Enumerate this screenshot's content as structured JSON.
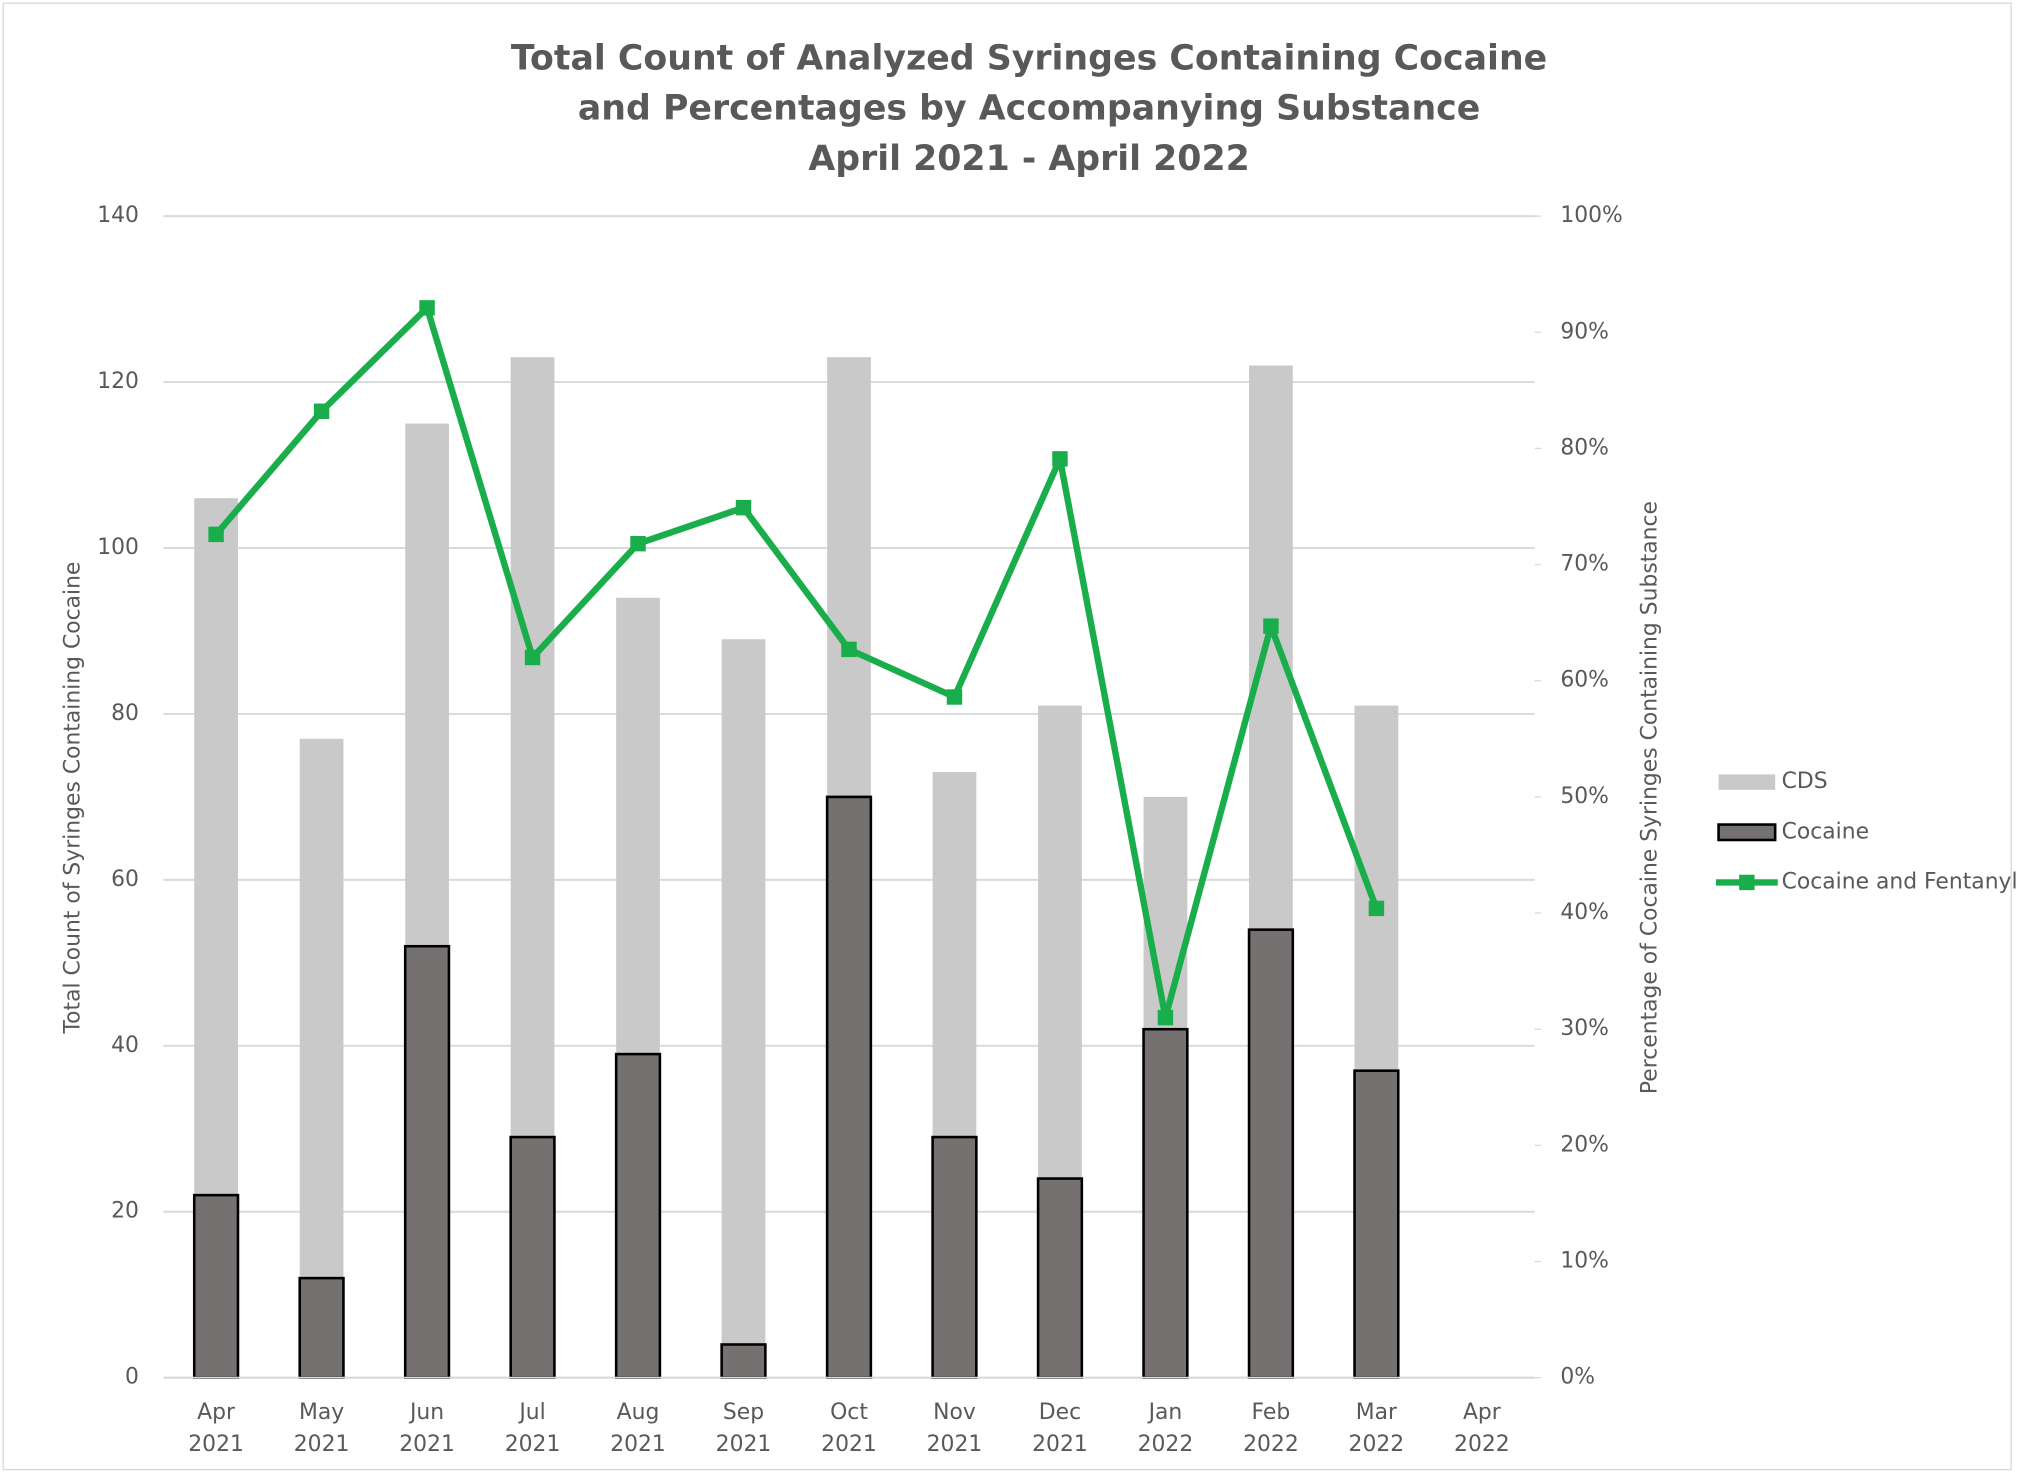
{
  "chart_data": {
    "type": "bar",
    "title": "Total Count of Analyzed Syringes Containing Cocaine\nand Percentages by Accompanying Substance\nApril 2021 - April 2022",
    "categories": [
      "Apr\n2021",
      "May\n2021",
      "Jun\n2021",
      "Jul\n2021",
      "Aug\n2021",
      "Sep\n2021",
      "Oct\n2021",
      "Nov\n2021",
      "Dec\n2021",
      "Jan\n2022",
      "Feb\n2022",
      "Mar\n2022",
      "Apr\n2022"
    ],
    "y_label": "Total Count of Syringes Containing Cocaine",
    "y2_label": "Percentage of Cocaine Syringes Containing Substance",
    "ylim": [
      0,
      140
    ],
    "yticks": [
      0,
      20,
      40,
      60,
      80,
      100,
      120,
      140
    ],
    "y2lim": [
      0,
      100
    ],
    "y2ticks": [
      {
        "value": 0,
        "label": "0%"
      },
      {
        "value": 10,
        "label": "10%"
      },
      {
        "value": 20,
        "label": "20%"
      },
      {
        "value": 30,
        "label": "30%"
      },
      {
        "value": 40,
        "label": "40%"
      },
      {
        "value": 50,
        "label": "50%"
      },
      {
        "value": 60,
        "label": "60%"
      },
      {
        "value": 70,
        "label": "70%"
      },
      {
        "value": 80,
        "label": "80%"
      },
      {
        "value": 90,
        "label": "90%"
      },
      {
        "value": 100,
        "label": "100%"
      }
    ],
    "grid": true,
    "legend": "right",
    "series": [
      {
        "name": "CDS",
        "type": "bar",
        "color": "#c9c9c9",
        "values": [
          106,
          77,
          115,
          123,
          94,
          89,
          123,
          73,
          81,
          70,
          122,
          81,
          null
        ]
      },
      {
        "name": "Cocaine",
        "type": "bar",
        "color": "#757171",
        "values": [
          22,
          12,
          52,
          29,
          39,
          4,
          70,
          29,
          24,
          42,
          54,
          37,
          null
        ]
      },
      {
        "name": "Cocaine and Fentanyl",
        "type": "line",
        "axis": "y2",
        "color": "#1aad4b",
        "values": [
          72.6,
          83.2,
          92.1,
          62.0,
          71.8,
          74.9,
          62.7,
          58.6,
          79.1,
          31.0,
          64.7,
          40.4,
          null
        ]
      }
    ]
  }
}
